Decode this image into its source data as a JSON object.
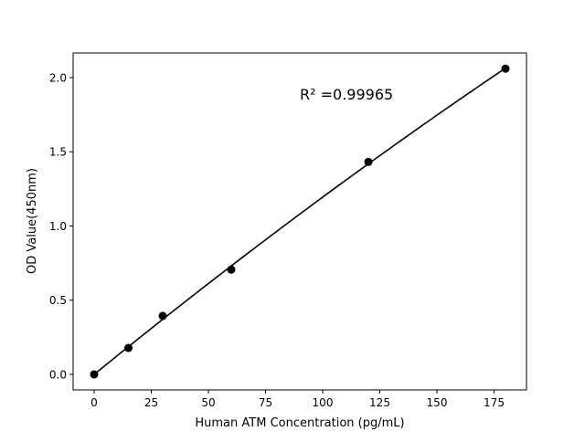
{
  "chart_data": {
    "type": "scatter",
    "title": "",
    "xlabel": "Human ATM Concentration (pg/mL)",
    "ylabel": "OD Value(450nm)",
    "xlim": [
      -9.2,
      189.2
    ],
    "ylim": [
      -0.105,
      2.166
    ],
    "xticks": [
      0,
      25,
      50,
      75,
      100,
      125,
      150,
      175
    ],
    "yticks": [
      0.0,
      0.5,
      1.0,
      1.5,
      2.0
    ],
    "xtick_labels": [
      "0",
      "25",
      "50",
      "75",
      "100",
      "125",
      "150",
      "175"
    ],
    "ytick_labels": [
      "0.0",
      "0.5",
      "1.0",
      "1.5",
      "2.0"
    ],
    "grid": false,
    "series": [
      {
        "x": [
          0,
          15,
          30,
          60,
          120,
          180
        ],
        "y": [
          0.0,
          0.178,
          0.394,
          0.706,
          1.432,
          2.06
        ],
        "marker": "circle",
        "color": "#000000",
        "fit_line": true
      }
    ],
    "annotation": "R² =0.99965"
  }
}
